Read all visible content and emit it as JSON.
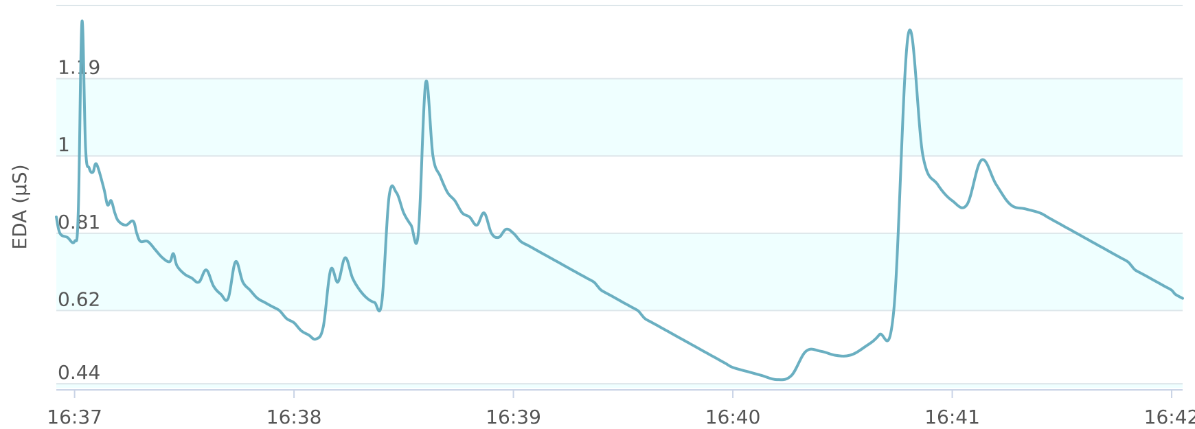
{
  "chart_data": {
    "type": "line",
    "title": "",
    "xlabel": "",
    "ylabel": "EDA (µS)",
    "x_ticks": [
      "16:37",
      "16:38",
      "16:39",
      "16:40",
      "16:41",
      "16:42"
    ],
    "y_ticks": [
      "0.44",
      "0.62",
      "0.81",
      "1",
      "1.19"
    ],
    "ylim": [
      0.43,
      1.37
    ],
    "xlim": [
      "16:36:55",
      "16:42:03"
    ],
    "grid": true,
    "legend": "none",
    "colors": {
      "line": "#6aafc1",
      "band": "#efffff",
      "gridline": "#dde6ea",
      "axis": "#c9d3e6",
      "text": "#555555"
    },
    "series": [
      {
        "x": [
          "16:36:55",
          "16:36:56",
          "16:36:58",
          "16:37:00",
          "16:37:01",
          "16:37:02",
          "16:37:03",
          "16:37:04",
          "16:37:05",
          "16:37:06",
          "16:37:08",
          "16:37:09",
          "16:37:10",
          "16:37:11",
          "16:37:12",
          "16:37:14",
          "16:37:16",
          "16:37:17",
          "16:37:18",
          "16:37:20",
          "16:37:22",
          "16:37:24",
          "16:37:26",
          "16:37:27",
          "16:37:28",
          "16:37:30",
          "16:37:32",
          "16:37:34",
          "16:37:36",
          "16:37:38",
          "16:37:40",
          "16:37:42",
          "16:37:44",
          "16:37:46",
          "16:37:48",
          "16:37:50",
          "16:37:52",
          "16:37:54",
          "16:37:56",
          "16:37:58",
          "16:38:00",
          "16:38:02",
          "16:38:04",
          "16:38:06",
          "16:38:08",
          "16:38:10",
          "16:38:12",
          "16:38:14",
          "16:38:16",
          "16:38:18",
          "16:38:20",
          "16:38:22",
          "16:38:24",
          "16:38:26",
          "16:38:28",
          "16:38:30",
          "16:38:32",
          "16:38:34",
          "16:38:36",
          "16:38:38",
          "16:38:40",
          "16:38:42",
          "16:38:44",
          "16:38:46",
          "16:38:48",
          "16:38:50",
          "16:38:52",
          "16:38:54",
          "16:38:56",
          "16:38:58",
          "16:39:00",
          "16:39:02",
          "16:39:04",
          "16:39:06",
          "16:39:08",
          "16:39:10",
          "16:39:12",
          "16:39:14",
          "16:39:16",
          "16:39:18",
          "16:39:20",
          "16:39:22",
          "16:39:23",
          "16:39:24",
          "16:39:26",
          "16:39:28",
          "16:39:30",
          "16:39:32",
          "16:39:34",
          "16:39:35",
          "16:39:36",
          "16:39:38",
          "16:39:40",
          "16:39:42",
          "16:39:44",
          "16:39:46",
          "16:39:48",
          "16:39:50",
          "16:39:52",
          "16:39:54",
          "16:39:56",
          "16:39:58",
          "16:40:00",
          "16:40:04",
          "16:40:08",
          "16:40:12",
          "16:40:16",
          "16:40:20",
          "16:40:24",
          "16:40:28",
          "16:40:32",
          "16:40:36",
          "16:40:40",
          "16:40:44",
          "16:40:48",
          "16:40:52",
          "16:40:56",
          "16:41:00",
          "16:41:04",
          "16:41:08",
          "16:41:12",
          "16:41:16",
          "16:41:20",
          "16:41:24",
          "16:41:26",
          "16:41:28",
          "16:41:30",
          "16:41:32",
          "16:41:34",
          "16:41:36",
          "16:41:38",
          "16:41:40",
          "16:41:42",
          "16:41:44",
          "16:41:46",
          "16:41:48",
          "16:41:49",
          "16:41:50",
          "16:41:52",
          "16:41:54",
          "16:41:56",
          "16:41:58",
          "16:42:00",
          "16:42:01",
          "16:42:03"
        ],
        "values": [
          0.85,
          0.81,
          0.8,
          0.79,
          0.86,
          1.33,
          1.02,
          0.97,
          0.96,
          0.98,
          0.92,
          0.88,
          0.89,
          0.86,
          0.84,
          0.83,
          0.84,
          0.81,
          0.79,
          0.79,
          0.77,
          0.75,
          0.74,
          0.76,
          0.73,
          0.71,
          0.7,
          0.69,
          0.72,
          0.68,
          0.66,
          0.65,
          0.74,
          0.69,
          0.67,
          0.65,
          0.64,
          0.63,
          0.62,
          0.6,
          0.59,
          0.57,
          0.56,
          0.55,
          0.58,
          0.72,
          0.69,
          0.75,
          0.7,
          0.67,
          0.65,
          0.64,
          0.64,
          0.9,
          0.91,
          0.86,
          0.83,
          0.81,
          1.18,
          1.0,
          0.95,
          0.91,
          0.89,
          0.86,
          0.85,
          0.83,
          0.86,
          0.81,
          0.8,
          0.82,
          0.81,
          0.79,
          0.78,
          0.77,
          0.76,
          0.75,
          0.74,
          0.73,
          0.72,
          0.71,
          0.7,
          0.69,
          0.68,
          0.67,
          0.66,
          0.65,
          0.64,
          0.63,
          0.62,
          0.61,
          0.6,
          0.59,
          0.58,
          0.57,
          0.56,
          0.55,
          0.54,
          0.53,
          0.52,
          0.51,
          0.5,
          0.49,
          0.48,
          0.47,
          0.46,
          0.45,
          0.46,
          0.52,
          0.52,
          0.51,
          0.51,
          0.53,
          0.56,
          0.62,
          1.3,
          1.0,
          0.93,
          0.89,
          0.88,
          0.99,
          0.93,
          0.88,
          0.87,
          0.86,
          0.85,
          0.84,
          0.83,
          0.82,
          0.81,
          0.8,
          0.79,
          0.78,
          0.77,
          0.76,
          0.75,
          0.74,
          0.73,
          0.72,
          0.71,
          0.7,
          0.69,
          0.68,
          0.67,
          0.66,
          0.65
        ]
      }
    ]
  }
}
